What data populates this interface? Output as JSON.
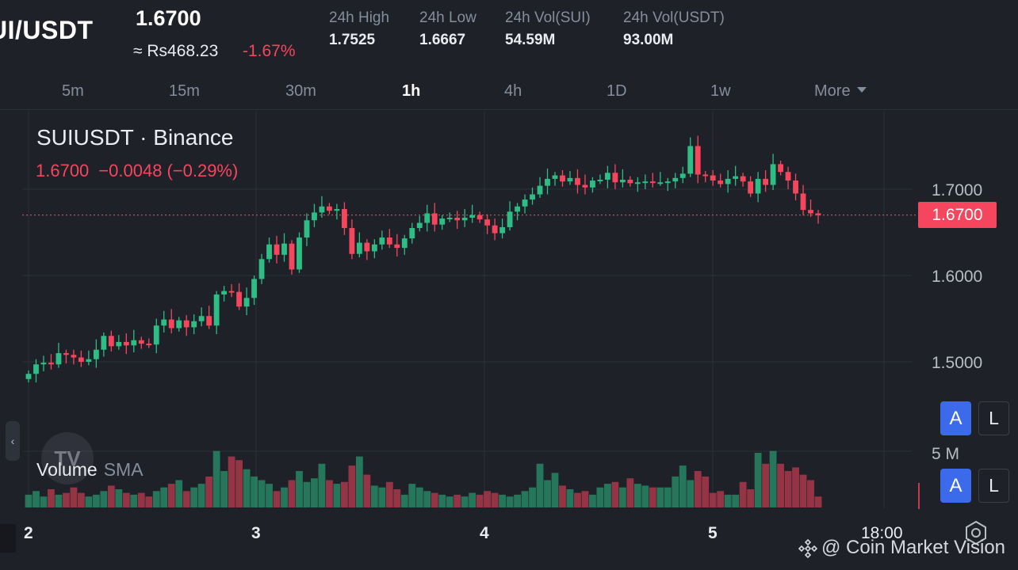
{
  "header": {
    "pair": "UI/USDT",
    "last_price": "1.6700",
    "fiat_price": "≈ Rs468.23",
    "change_pct": "-1.67%",
    "stats": [
      {
        "label": "24h High",
        "value": "1.7525"
      },
      {
        "label": "24h Low",
        "value": "1.6667"
      },
      {
        "label": "24h Vol(SUI)",
        "value": "54.59M"
      },
      {
        "label": "24h Vol(USDT)",
        "value": "93.00M"
      }
    ]
  },
  "intervals": {
    "items": [
      "5m",
      "15m",
      "30m",
      "1h",
      "4h",
      "1D",
      "1w"
    ],
    "active": "1h",
    "more_label": "More"
  },
  "legend": {
    "title": "SUIUSDT · Binance",
    "close": "1.6700",
    "change": "−0.0048",
    "change_pct": "(−0.29%)",
    "volume_label": "Volume",
    "volume_indicator": "SMA"
  },
  "price_axis": {
    "labels": [
      "1.7000",
      "1.6000",
      "1.5000"
    ],
    "current_tag": "1.6700",
    "volume_scale": "5 M"
  },
  "time_axis": {
    "labels": [
      "2",
      "3",
      "4",
      "5",
      "18:00"
    ]
  },
  "scale_buttons": {
    "auto": "A",
    "log": "L"
  },
  "watermark": {
    "text": "@ Coin Market Vision",
    "logo_text": "TV"
  },
  "colors": {
    "up": "#2ebd85",
    "down": "#f6465d",
    "background": "#1e2128",
    "grid": "#2b2f36"
  },
  "icons": {
    "collapse": "chevron-left-icon",
    "settings": "settings-hexagon-icon",
    "brand": "binance-diamond-icon"
  },
  "chart_data": {
    "type": "candlestick",
    "symbol": "SUIUSDT",
    "interval": "1h",
    "y_labels": [
      "1.7000",
      "1.6000",
      "1.5000"
    ],
    "ohlc_sample_first": [
      1.489,
      1.499,
      1.486,
      1.497
    ],
    "ohlc_sample_last": [
      1.674,
      1.676,
      1.669,
      1.67
    ],
    "note_volume_unit": "M"
  }
}
